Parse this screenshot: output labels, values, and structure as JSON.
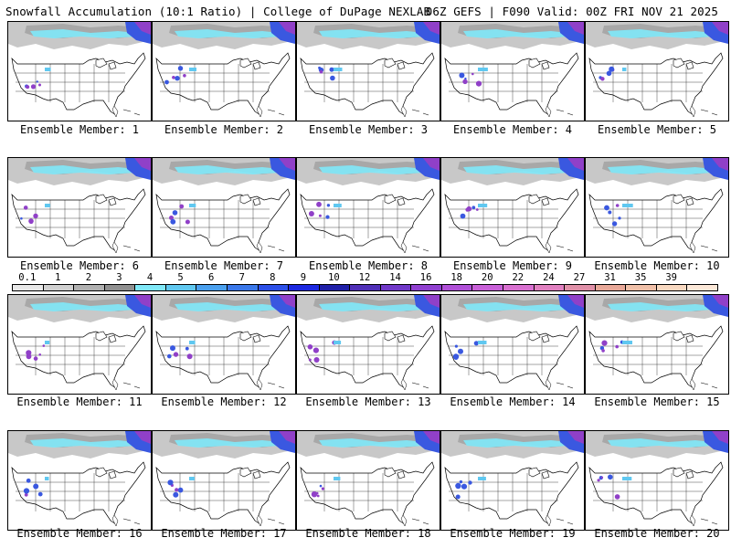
{
  "header": {
    "left": "Snowfall Accumulation (10:1 Ratio) | College of DuPage NEXLAB",
    "right": "06Z GEFS | F090 Valid: 00Z FRI NOV 21 2025"
  },
  "members": [
    {
      "label": "Ensemble Member: 1"
    },
    {
      "label": "Ensemble Member: 2"
    },
    {
      "label": "Ensemble Member: 3"
    },
    {
      "label": "Ensemble Member: 4"
    },
    {
      "label": "Ensemble Member: 5"
    },
    {
      "label": "Ensemble Member: 6"
    },
    {
      "label": "Ensemble Member: 7"
    },
    {
      "label": "Ensemble Member: 8"
    },
    {
      "label": "Ensemble Member: 9"
    },
    {
      "label": "Ensemble Member: 10"
    },
    {
      "label": "Ensemble Member: 11"
    },
    {
      "label": "Ensemble Member: 12"
    },
    {
      "label": "Ensemble Member: 13"
    },
    {
      "label": "Ensemble Member: 14"
    },
    {
      "label": "Ensemble Member: 15"
    },
    {
      "label": "Ensemble Member: 16"
    },
    {
      "label": "Ensemble Member: 17"
    },
    {
      "label": "Ensemble Member: 18"
    },
    {
      "label": "Ensemble Member: 19"
    },
    {
      "label": "Ensemble Member: 20"
    }
  ],
  "legend": {
    "labels": [
      "0.1",
      "1",
      "2",
      "3",
      "4",
      "5",
      "6",
      "7",
      "8",
      "9",
      "10",
      "12",
      "14",
      "16",
      "18",
      "20",
      "22",
      "24",
      "27",
      "31",
      "35",
      "39"
    ],
    "colors": [
      "#e8e8e8",
      "#d0d0d0",
      "#b0b0b0",
      "#909090",
      "#80e8f8",
      "#60c8f0",
      "#4aa0ee",
      "#3a78ea",
      "#2c50e8",
      "#1c28e0",
      "#2020a8",
      "#5030b8",
      "#7038c8",
      "#9040d0",
      "#b050d8",
      "#c860d8",
      "#d870d0",
      "#e080c0",
      "#e090a8",
      "#e8a898",
      "#f0c0a8",
      "#f8d8c0",
      "#fce8d8"
    ]
  }
}
